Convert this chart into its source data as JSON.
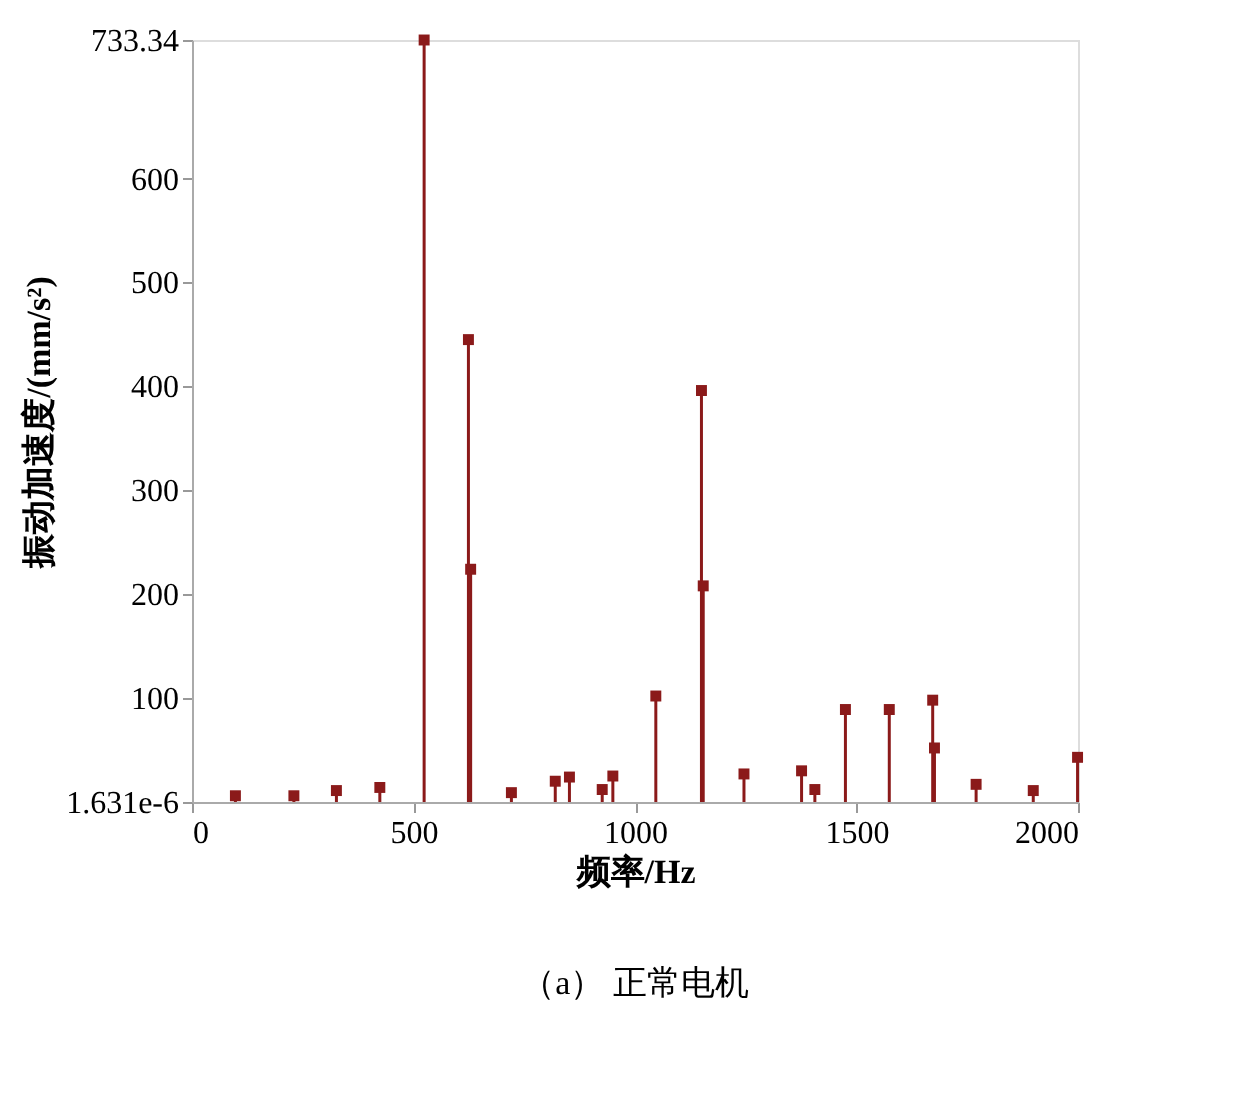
{
  "chart_data": {
    "type": "lollipop",
    "title": "（a）   正常电机",
    "xlabel": "频率/Hz",
    "ylabel": "振动加速度/(mm/s²)",
    "x": [
      98,
      230,
      326,
      424,
      524,
      624,
      629,
      721,
      820,
      852,
      926,
      950,
      1047,
      1150,
      1154,
      1246,
      1376,
      1406,
      1475,
      1574,
      1672,
      1676,
      1770,
      1899,
      1999
    ],
    "series": [
      {
        "color": "#8b1a1a",
        "values": [
          6,
          6,
          11,
          14,
          733.34,
          445,
          224,
          9,
          20,
          24,
          12,
          25,
          102,
          396,
          208,
          27,
          30,
          12,
          89,
          89,
          98,
          52,
          17,
          11,
          43
        ]
      }
    ],
    "marker": "square",
    "xlim": [
      0,
      2000
    ],
    "xticks": [
      0,
      500,
      1000,
      1500,
      2000
    ],
    "ylim": [
      1.631e-06,
      733.34
    ],
    "yticks": [
      {
        "value": 1.631e-06,
        "label": "1.631e-6"
      },
      100,
      200,
      300,
      400,
      500,
      600,
      733.34
    ],
    "grid": false
  }
}
